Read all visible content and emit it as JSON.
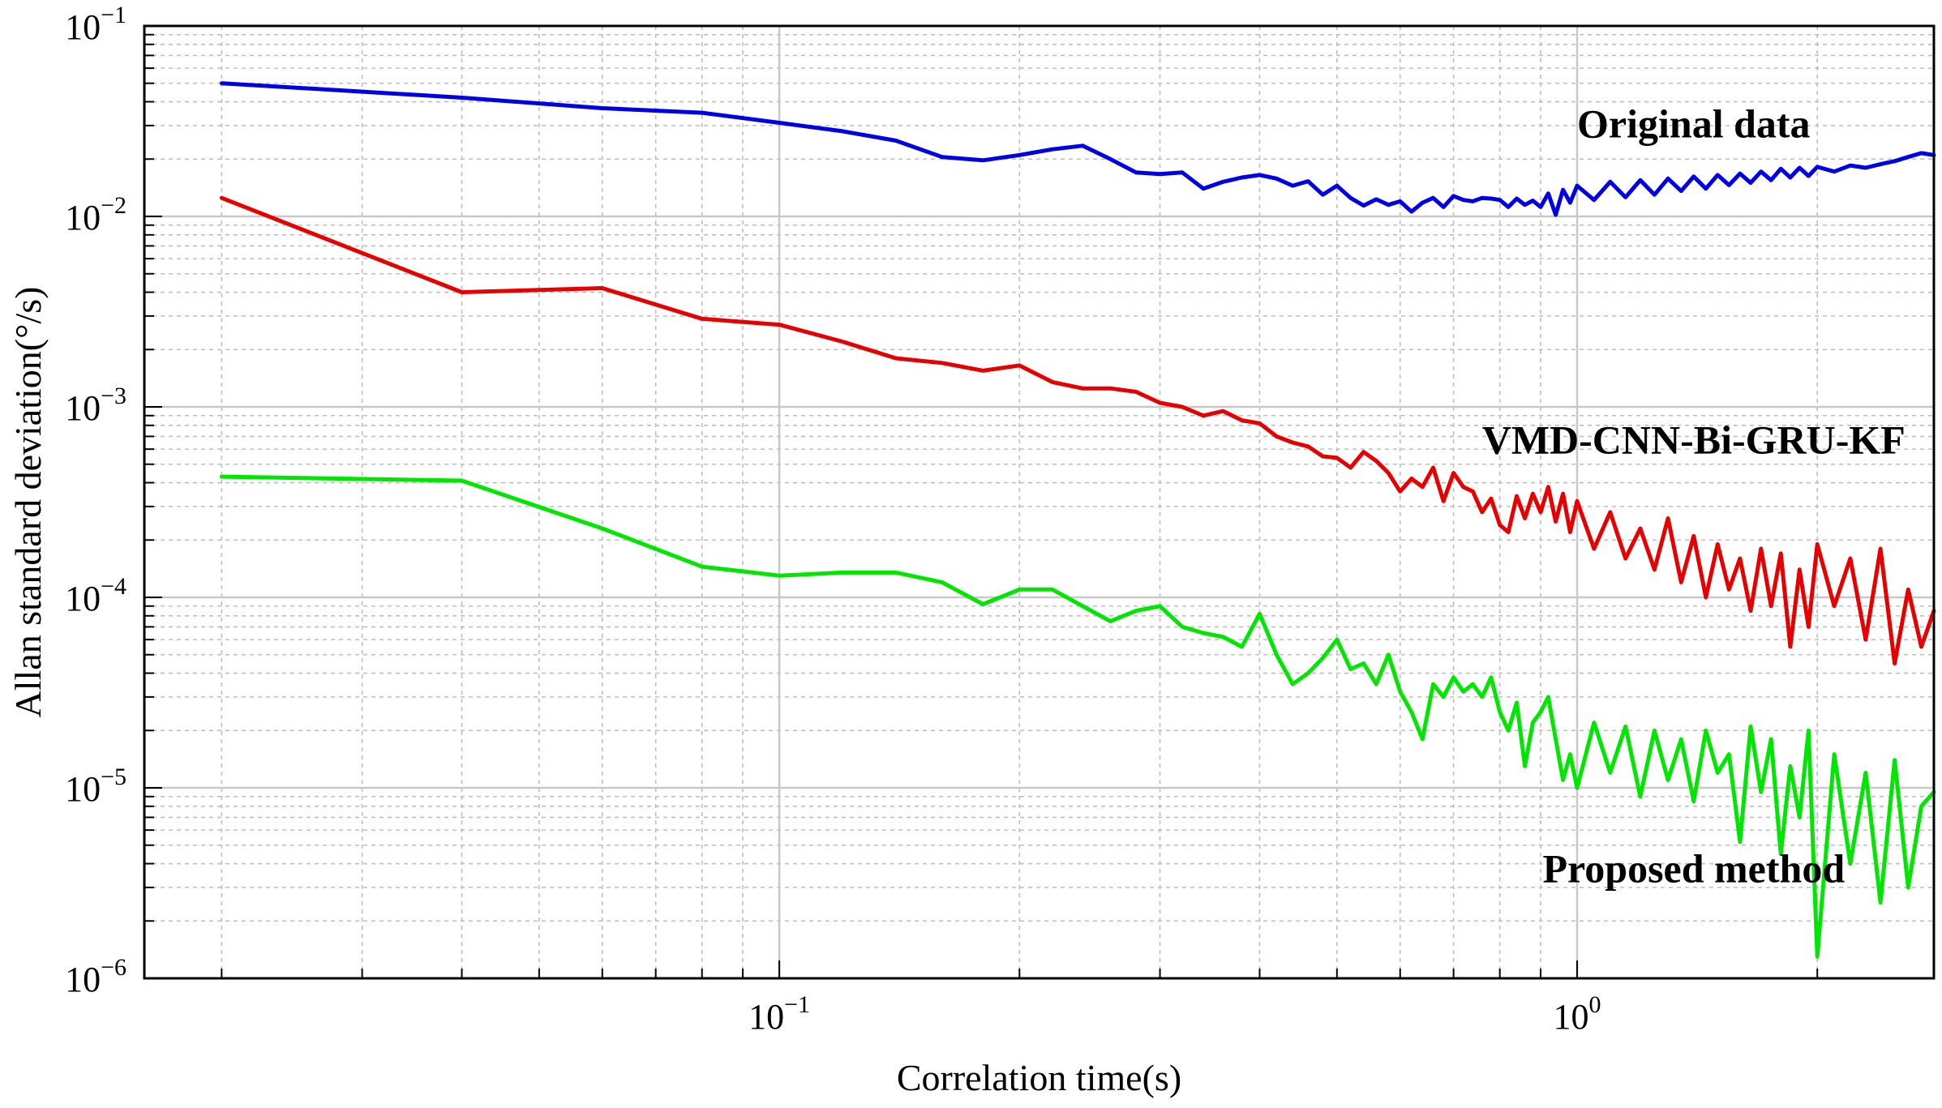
{
  "chart_data": {
    "type": "line",
    "title": "",
    "xlabel": "Correlation time(s)",
    "ylabel": "Allan standard deviation(°/s)",
    "x_scale": "log",
    "y_scale": "log",
    "xlim": [
      0.016,
      2.8
    ],
    "ylim": [
      1e-06,
      0.1
    ],
    "x_ticks": [
      {
        "value": 0.1,
        "base": "10",
        "exp": "−1"
      },
      {
        "value": 1,
        "base": "10",
        "exp": "0"
      }
    ],
    "y_ticks": [
      {
        "value": 0.1,
        "base": "10",
        "exp": "−1"
      },
      {
        "value": 0.01,
        "base": "10",
        "exp": "−2"
      },
      {
        "value": 0.001,
        "base": "10",
        "exp": "−3"
      },
      {
        "value": 0.0001,
        "base": "10",
        "exp": "−4"
      },
      {
        "value": 1e-05,
        "base": "10",
        "exp": "−5"
      },
      {
        "value": 1e-06,
        "base": "10",
        "exp": "−6"
      }
    ],
    "grid": true,
    "series": [
      {
        "name": "Original data",
        "color": "#0000e6",
        "x": [
          0.02,
          0.04,
          0.06,
          0.08,
          0.1,
          0.12,
          0.14,
          0.16,
          0.18,
          0.2,
          0.22,
          0.24,
          0.26,
          0.28,
          0.3,
          0.32,
          0.34,
          0.36,
          0.38,
          0.4,
          0.42,
          0.44,
          0.46,
          0.48,
          0.5,
          0.52,
          0.54,
          0.56,
          0.58,
          0.6,
          0.62,
          0.64,
          0.66,
          0.68,
          0.7,
          0.72,
          0.74,
          0.76,
          0.78,
          0.8,
          0.82,
          0.84,
          0.86,
          0.88,
          0.9,
          0.92,
          0.94,
          0.96,
          0.98,
          1.0,
          1.05,
          1.1,
          1.15,
          1.2,
          1.25,
          1.3,
          1.35,
          1.4,
          1.45,
          1.5,
          1.55,
          1.6,
          1.65,
          1.7,
          1.75,
          1.8,
          1.85,
          1.9,
          1.95,
          2.0,
          2.1,
          2.2,
          2.3,
          2.4,
          2.5,
          2.6,
          2.7,
          2.8
        ],
        "y": [
          0.05,
          0.042,
          0.037,
          0.035,
          0.031,
          0.028,
          0.025,
          0.0205,
          0.0197,
          0.021,
          0.0225,
          0.0235,
          0.02,
          0.017,
          0.0167,
          0.017,
          0.014,
          0.0152,
          0.016,
          0.0165,
          0.0158,
          0.0145,
          0.0153,
          0.013,
          0.0145,
          0.0125,
          0.0114,
          0.0123,
          0.0115,
          0.012,
          0.0106,
          0.0118,
          0.0125,
          0.0112,
          0.0128,
          0.0122,
          0.012,
          0.0125,
          0.0124,
          0.0122,
          0.0112,
          0.0124,
          0.0115,
          0.0121,
          0.0112,
          0.0132,
          0.0102,
          0.0138,
          0.0118,
          0.0145,
          0.0122,
          0.0152,
          0.0126,
          0.0155,
          0.013,
          0.0158,
          0.0136,
          0.0162,
          0.014,
          0.0165,
          0.0146,
          0.0168,
          0.015,
          0.0172,
          0.0155,
          0.0178,
          0.016,
          0.018,
          0.0163,
          0.0182,
          0.0172,
          0.0185,
          0.018,
          0.0188,
          0.0195,
          0.0205,
          0.0215,
          0.021
        ]
      },
      {
        "name": "VMD-CNN-Bi-GRU-KF",
        "color": "#e60000",
        "x": [
          0.02,
          0.04,
          0.06,
          0.08,
          0.1,
          0.12,
          0.14,
          0.16,
          0.18,
          0.2,
          0.22,
          0.24,
          0.26,
          0.28,
          0.3,
          0.32,
          0.34,
          0.36,
          0.38,
          0.4,
          0.42,
          0.44,
          0.46,
          0.48,
          0.5,
          0.52,
          0.54,
          0.56,
          0.58,
          0.6,
          0.62,
          0.64,
          0.66,
          0.68,
          0.7,
          0.72,
          0.74,
          0.76,
          0.78,
          0.8,
          0.82,
          0.84,
          0.86,
          0.88,
          0.9,
          0.92,
          0.94,
          0.96,
          0.98,
          1.0,
          1.05,
          1.1,
          1.15,
          1.2,
          1.25,
          1.3,
          1.35,
          1.4,
          1.45,
          1.5,
          1.55,
          1.6,
          1.65,
          1.7,
          1.75,
          1.8,
          1.85,
          1.9,
          1.95,
          2.0,
          2.1,
          2.2,
          2.3,
          2.4,
          2.5,
          2.6,
          2.7,
          2.8
        ],
        "y": [
          0.0125,
          0.004,
          0.0042,
          0.0029,
          0.0027,
          0.0022,
          0.0018,
          0.0017,
          0.00155,
          0.00165,
          0.00135,
          0.00125,
          0.00125,
          0.0012,
          0.00105,
          0.001,
          0.0009,
          0.00095,
          0.00085,
          0.00082,
          0.0007,
          0.00065,
          0.00062,
          0.00055,
          0.00054,
          0.00048,
          0.00058,
          0.00052,
          0.00045,
          0.00036,
          0.00042,
          0.00038,
          0.00048,
          0.00032,
          0.00045,
          0.00038,
          0.00036,
          0.00028,
          0.00033,
          0.00024,
          0.00022,
          0.00034,
          0.00026,
          0.00035,
          0.00028,
          0.00038,
          0.00025,
          0.00035,
          0.00022,
          0.00032,
          0.00018,
          0.00028,
          0.00016,
          0.00023,
          0.00014,
          0.00026,
          0.00012,
          0.00021,
          0.0001,
          0.00019,
          0.00011,
          0.00016,
          8.5e-05,
          0.00018,
          9e-05,
          0.00017,
          5.5e-05,
          0.00014,
          7e-05,
          0.00019,
          9e-05,
          0.00016,
          6e-05,
          0.00018,
          4.5e-05,
          0.00011,
          5.5e-05,
          8.5e-05
        ]
      },
      {
        "name": "Proposed method",
        "color": "#00e600",
        "x": [
          0.02,
          0.04,
          0.06,
          0.08,
          0.1,
          0.12,
          0.14,
          0.16,
          0.18,
          0.2,
          0.22,
          0.24,
          0.26,
          0.28,
          0.3,
          0.32,
          0.34,
          0.36,
          0.38,
          0.4,
          0.42,
          0.44,
          0.46,
          0.48,
          0.5,
          0.52,
          0.54,
          0.56,
          0.58,
          0.6,
          0.62,
          0.64,
          0.66,
          0.68,
          0.7,
          0.72,
          0.74,
          0.76,
          0.78,
          0.8,
          0.82,
          0.84,
          0.86,
          0.88,
          0.9,
          0.92,
          0.94,
          0.96,
          0.98,
          1.0,
          1.05,
          1.1,
          1.15,
          1.2,
          1.25,
          1.3,
          1.35,
          1.4,
          1.45,
          1.5,
          1.55,
          1.6,
          1.65,
          1.7,
          1.75,
          1.8,
          1.85,
          1.9,
          1.95,
          2.0,
          2.1,
          2.2,
          2.3,
          2.4,
          2.5,
          2.6,
          2.7,
          2.8
        ],
        "y": [
          0.00043,
          0.00041,
          0.00023,
          0.000145,
          0.00013,
          0.000135,
          0.000135,
          0.00012,
          9.2e-05,
          0.00011,
          0.00011,
          9e-05,
          7.5e-05,
          8.5e-05,
          9e-05,
          7e-05,
          6.5e-05,
          6.2e-05,
          5.5e-05,
          8.2e-05,
          5e-05,
          3.5e-05,
          4e-05,
          4.8e-05,
          6e-05,
          4.2e-05,
          4.5e-05,
          3.5e-05,
          5e-05,
          3.2e-05,
          2.5e-05,
          1.8e-05,
          3.5e-05,
          3e-05,
          3.8e-05,
          3.2e-05,
          3.5e-05,
          3e-05,
          3.8e-05,
          2.5e-05,
          2e-05,
          2.8e-05,
          1.3e-05,
          2.2e-05,
          2.5e-05,
          3e-05,
          1.8e-05,
          1.1e-05,
          1.5e-05,
          1e-05,
          2.2e-05,
          1.2e-05,
          2.1e-05,
          9e-06,
          2e-05,
          1.1e-05,
          1.8e-05,
          8.5e-06,
          2e-05,
          1.2e-05,
          1.5e-05,
          5.2e-06,
          2.1e-05,
          9.5e-06,
          1.8e-05,
          4.5e-06,
          1.3e-05,
          7e-06,
          2e-05,
          1.3e-06,
          1.5e-05,
          4e-06,
          1.2e-05,
          2.5e-06,
          1.4e-05,
          3e-06,
          8e-06,
          9.5e-06
        ]
      }
    ],
    "annotations": [
      {
        "text": "Original data",
        "x": 1.4,
        "y": 0.026
      },
      {
        "text": "VMD-CNN-Bi-GRU-KF",
        "x": 1.4,
        "y": 0.00057
      },
      {
        "text": "Proposed method",
        "x": 1.4,
        "y": 3.2e-06
      }
    ]
  }
}
